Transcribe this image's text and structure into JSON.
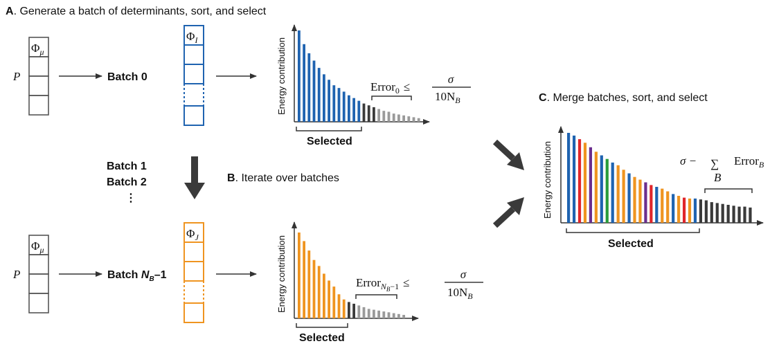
{
  "panels": {
    "a": {
      "letter": "A",
      "title": ". Generate a batch of determinants, sort, and select"
    },
    "b": {
      "letter": "B",
      "title": ". Iterate over batches"
    },
    "c": {
      "letter": "C",
      "title": ". Merge batches, sort, and select"
    }
  },
  "labels": {
    "batch0": "Batch 0",
    "batch1": "Batch 1",
    "batch2": "Batch 2",
    "batch_ellipsis": "⋮",
    "batchN_prefix": "Batch ",
    "batchN_n": "N",
    "batchN_sub": "B",
    "batchN_suffix": "–1",
    "p_symbol": "P",
    "phi_mu": "Φ",
    "phi_mu_sub": "μ",
    "phi_i": "Φ",
    "phi_i_sub": "I",
    "phi_j": "Φ",
    "phi_j_sub": "J",
    "selected": "Selected",
    "ylabel": "Energy contribution"
  },
  "formulas": {
    "error0_word": "Error",
    "error0_sub": "0",
    "errorN_word": "Error",
    "errorN_sub": "N",
    "errorN_subsub": "B",
    "errorN_tail": "−1",
    "leq": "≤",
    "sigma": "σ",
    "denom": "10N",
    "denom_sub": "B",
    "merge_sigma": "σ −",
    "merge_sum": "∑",
    "merge_sum_sub": "B",
    "merge_error": "Error",
    "merge_error_sub": "B"
  },
  "colors": {
    "blue": "#1f63b0",
    "orange": "#ef9420",
    "red": "#e0262b",
    "purple": "#6b2e8e",
    "green": "#2a9d3a",
    "dark": "#3a3a3a",
    "light": "#9a9a9a",
    "box": "#555555"
  },
  "chart_data": [
    {
      "type": "bar",
      "name": "batch0",
      "ylabel": "Energy contribution",
      "values": [
        100,
        85,
        75,
        67,
        59,
        52,
        46,
        40,
        37,
        33,
        29,
        26,
        23,
        20,
        18,
        16,
        14,
        12,
        11,
        9,
        8,
        7,
        6,
        5,
        4
      ],
      "colors": [
        "blue",
        "blue",
        "blue",
        "blue",
        "blue",
        "blue",
        "blue",
        "blue",
        "blue",
        "blue",
        "blue",
        "blue",
        "blue",
        "dark",
        "dark",
        "dark",
        "light",
        "light",
        "light",
        "light",
        "light",
        "light",
        "light",
        "light",
        "light"
      ],
      "selected_count": 16
    },
    {
      "type": "bar",
      "name": "batchN",
      "ylabel": "Energy contribution",
      "values": [
        100,
        90,
        79,
        68,
        61,
        52,
        44,
        37,
        28,
        22,
        19,
        17,
        15,
        13,
        11,
        10,
        9,
        8,
        7,
        6,
        5,
        4
      ],
      "colors": [
        "orange",
        "orange",
        "orange",
        "orange",
        "orange",
        "orange",
        "orange",
        "orange",
        "orange",
        "orange",
        "dark",
        "dark",
        "light",
        "light",
        "light",
        "light",
        "light",
        "light",
        "light",
        "light",
        "light",
        "light"
      ],
      "selected_count": 11
    },
    {
      "type": "bar",
      "name": "merged",
      "ylabel": "Energy contribution",
      "values": [
        100,
        97,
        93,
        89,
        84,
        79,
        75,
        71,
        67,
        64,
        59,
        55,
        51,
        48,
        45,
        42,
        40,
        38,
        35,
        32,
        30,
        28,
        27,
        27,
        26,
        25,
        23,
        22,
        21,
        20,
        19,
        18,
        18,
        17
      ],
      "colors": [
        "blue",
        "blue",
        "red",
        "orange",
        "purple",
        "orange",
        "blue",
        "green",
        "blue",
        "orange",
        "orange",
        "blue",
        "orange",
        "orange",
        "purple",
        "red",
        "blue",
        "orange",
        "orange",
        "blue",
        "orange",
        "red",
        "orange",
        "blue",
        "dark",
        "dark",
        "dark",
        "dark",
        "dark",
        "dark",
        "dark",
        "dark",
        "dark",
        "dark"
      ],
      "selected_count": 24
    }
  ]
}
